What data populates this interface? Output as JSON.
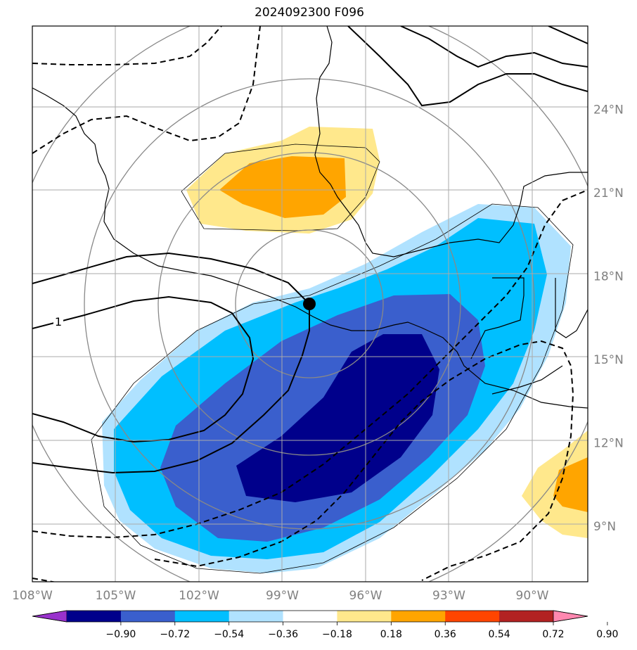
{
  "title": "2024092300 F096",
  "chart_data": {
    "type": "contour",
    "title": "2024092300 F096",
    "projection": "lat-lon map",
    "lon_range": [
      -108,
      -88
    ],
    "lat_range": [
      7,
      27
    ],
    "lon_ticks": [
      -108,
      -105,
      -102,
      -99,
      -96,
      -93,
      -90
    ],
    "lon_tick_labels": [
      "108°W",
      "105°W",
      "102°W",
      "99°W",
      "96°W",
      "93°W",
      "90°W"
    ],
    "lat_ticks": [
      9,
      12,
      15,
      18,
      21,
      24
    ],
    "lat_tick_labels": [
      "9°N",
      "12°N",
      "15°N",
      "18°N",
      "21°N",
      "24°N"
    ],
    "grid": true,
    "filled_levels": [
      -0.9,
      -0.72,
      -0.54,
      -0.36,
      -0.18,
      0.18,
      0.36,
      0.54,
      0.72,
      0.9
    ],
    "colorbar_ticks": [
      "−0.90",
      "−0.72",
      "−0.54",
      "−0.36",
      "−0.18",
      "0.18",
      "0.36",
      "0.54",
      "0.72",
      "0.90"
    ],
    "colorbar_colors": [
      "#9932cc",
      "#00008b",
      "#3a5fcd",
      "#00bfff",
      "#b0e2ff",
      "#ffffff",
      "#ffe88c",
      "#ffa500",
      "#ff4500",
      "#b22222",
      "#ff88b0"
    ],
    "colorbar_extend": "both",
    "contour_label": "1",
    "marker_point": {
      "lon": -98.2,
      "lat": 16.9
    },
    "range_rings_center": {
      "lon": -98.2,
      "lat": 16.9
    }
  }
}
